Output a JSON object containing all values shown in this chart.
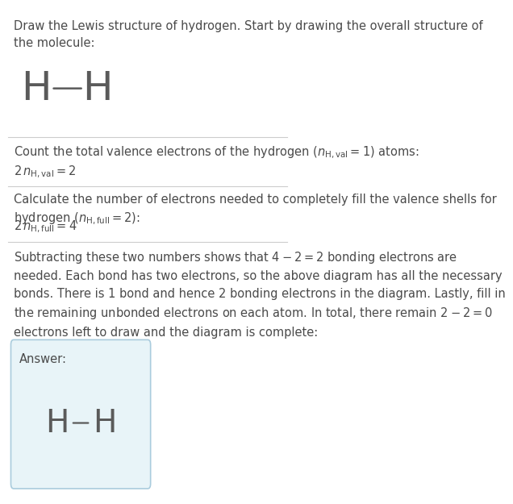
{
  "title_text": "Draw the Lewis structure of hydrogen. Start by drawing the overall structure of\nthe molecule:",
  "section1_label": "Count the total valence electrons of the hydrogen ($n_{\\mathrm{H,val}} = 1$) atoms:",
  "section1_eq": "$2\\,n_{\\mathrm{H,val}} = 2$",
  "section2_label": "Calculate the number of electrons needed to completely fill the valence shells for\nhydrogen ($n_{\\mathrm{H,full}} = 2$):",
  "section2_eq": "$2\\,n_{\\mathrm{H,full}} = 4$",
  "section3_text": "Subtracting these two numbers shows that $4 - 2 = 2$ bonding electrons are\nneeded. Each bond has two electrons, so the above diagram has all the necessary\nbonds. There is 1 bond and hence 2 bonding electrons in the diagram. Lastly, fill in\nthe remaining unbonded electrons on each atom. In total, there remain $2 - 2 = 0$\nelectrons left to draw and the diagram is complete:",
  "answer_label": "Answer:",
  "text_color": "#4a4a4a",
  "bg_color": "#ffffff",
  "answer_box_color": "#e8f4f8",
  "answer_box_edge_color": "#aaccdd",
  "line_color": "#cccccc",
  "H_color": "#5a5a5a",
  "bond_color": "#5a5a5a",
  "font_size_body": 10.5,
  "font_size_H_top": 36,
  "font_size_H_answer": 28,
  "fig_width": 5.45,
  "fig_height": 6.08
}
